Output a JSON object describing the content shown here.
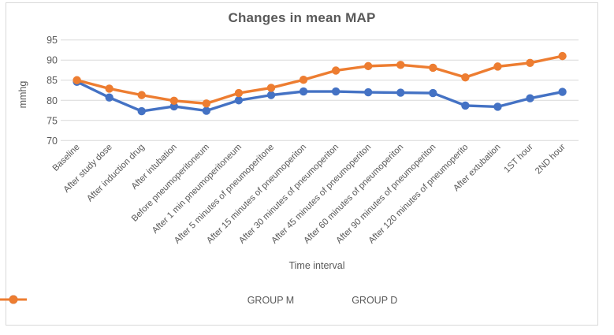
{
  "chart_data": {
    "type": "line",
    "title": "Changes in mean MAP",
    "xlabel": "Time interval",
    "ylabel": "mmhg",
    "ylim": [
      70,
      95
    ],
    "yticks": [
      70,
      75,
      80,
      85,
      90,
      95
    ],
    "grid": true,
    "legend_position": "bottom",
    "colors": {
      "grid": "#D9D9D9",
      "text": "#595959",
      "frame_border": "#D9D9D9"
    },
    "categories": [
      "Baseline",
      "After study dose",
      "After induction drug",
      "After intubation",
      "Before pneumoperitoneum",
      "After 1 min pneumoperitoneum",
      "After 5 minutes of pneumoperitone",
      "After 15 minutes of pneumoperiton",
      "After 30 minutes of pneumoperiton",
      "After 45 minutes of pneumoperiton",
      "After 60 minutes of pneumoperiton",
      "After 90 minutes of pneumoperiton",
      "After 120 minutes of pneumoperito",
      "After extubation",
      "1ST hour",
      "2ND hour"
    ],
    "series": [
      {
        "name": "GROUP M",
        "color": "#4472C4",
        "values": [
          84.6,
          80.7,
          77.3,
          78.5,
          77.4,
          80.0,
          81.3,
          82.2,
          82.2,
          82.0,
          81.9,
          81.8,
          78.7,
          78.4,
          80.5,
          82.1
        ]
      },
      {
        "name": "GROUP D",
        "color": "#ED7D31",
        "values": [
          85.0,
          82.9,
          81.3,
          79.9,
          79.2,
          81.8,
          83.1,
          85.1,
          87.4,
          88.5,
          88.8,
          88.1,
          85.7,
          88.4,
          89.3,
          91.0
        ]
      }
    ]
  }
}
